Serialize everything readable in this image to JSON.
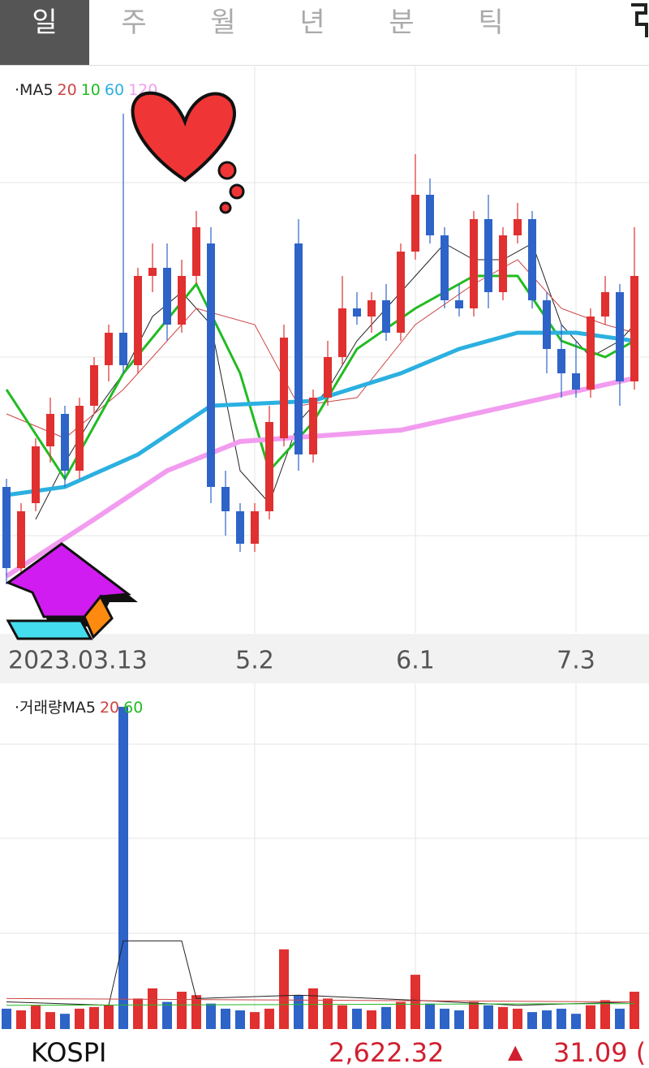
{
  "header": {
    "tabs": [
      "일",
      "주",
      "월",
      "년",
      "분",
      "틱"
    ]
  },
  "chart_data": [
    {
      "type": "candlestick",
      "legend_prefix": "·",
      "up_color": "#e03030",
      "down_color": "#2e63c8",
      "categories": [
        "2023.03.13",
        null,
        null,
        null,
        null,
        null,
        null,
        null,
        null,
        null,
        null,
        null,
        null,
        null,
        null,
        null,
        null,
        "5.2",
        null,
        null,
        null,
        null,
        null,
        null,
        null,
        null,
        null,
        null,
        "6.1",
        null,
        null,
        null,
        null,
        null,
        null,
        null,
        null,
        null,
        null,
        "7.3",
        null,
        null,
        null,
        null
      ],
      "ylim": [
        2400,
        2747.5
      ],
      "open": [
        2490,
        2440,
        2480,
        2515,
        2535,
        2500,
        2540,
        2565,
        2585,
        2565,
        2620,
        2625,
        2590,
        2620,
        2640,
        2490,
        2475,
        2455,
        2475,
        2520,
        2640,
        2510,
        2545,
        2570,
        2600,
        2595,
        2605,
        2585,
        2635,
        2670,
        2645,
        2605,
        2600,
        2655,
        2610,
        2645,
        2655,
        2605,
        2575,
        2560,
        2550,
        2595,
        2610,
        2555
      ],
      "high": [
        2495,
        2480,
        2520,
        2545,
        2540,
        2545,
        2570,
        2590,
        2720,
        2625,
        2640,
        2640,
        2630,
        2660,
        2650,
        2500,
        2480,
        2480,
        2540,
        2590,
        2655,
        2550,
        2580,
        2620,
        2610,
        2610,
        2615,
        2640,
        2695,
        2680,
        2650,
        2615,
        2660,
        2670,
        2650,
        2665,
        2660,
        2610,
        2590,
        2580,
        2600,
        2620,
        2615,
        2650
      ],
      "low": [
        2430,
        2435,
        2475,
        2505,
        2490,
        2495,
        2535,
        2555,
        2560,
        2560,
        2610,
        2580,
        2585,
        2615,
        2480,
        2460,
        2450,
        2450,
        2470,
        2515,
        2500,
        2505,
        2540,
        2565,
        2590,
        2585,
        2580,
        2580,
        2630,
        2640,
        2600,
        2595,
        2595,
        2600,
        2605,
        2640,
        2600,
        2560,
        2545,
        2545,
        2545,
        2590,
        2540,
        2550
      ],
      "close": [
        2440,
        2475,
        2515,
        2535,
        2500,
        2540,
        2565,
        2585,
        2565,
        2620,
        2625,
        2590,
        2620,
        2650,
        2490,
        2475,
        2455,
        2475,
        2530,
        2582,
        2510,
        2545,
        2570,
        2600,
        2595,
        2605,
        2585,
        2635,
        2670,
        2645,
        2605,
        2600,
        2655,
        2610,
        2645,
        2655,
        2605,
        2575,
        2560,
        2550,
        2595,
        2610,
        2555,
        2620
      ],
      "series": [
        {
          "name": "MA5",
          "color": "#222222",
          "width": 1,
          "x": [
            2,
            4,
            6,
            8,
            10,
            12,
            14,
            16,
            18,
            20,
            22,
            24,
            26,
            28,
            30,
            32,
            34,
            36,
            38,
            40,
            42,
            43
          ],
          "values": [
            2470,
            2505,
            2535,
            2560,
            2595,
            2610,
            2590,
            2500,
            2480,
            2530,
            2550,
            2580,
            2600,
            2620,
            2640,
            2630,
            2630,
            2640,
            2590,
            2570,
            2580,
            2590
          ]
        },
        {
          "name": "20",
          "color": "#cc4444",
          "width": 1,
          "x": [
            0,
            4,
            8,
            13,
            17,
            20,
            24,
            28,
            32,
            35,
            38,
            41,
            43
          ],
          "values": [
            2535,
            2520,
            2550,
            2600,
            2590,
            2540,
            2545,
            2590,
            2615,
            2630,
            2600,
            2590,
            2585
          ]
        },
        {
          "name": "10",
          "color": "#22bb22",
          "width": 3,
          "x": [
            0,
            4,
            8,
            13,
            16,
            18,
            21,
            24,
            28,
            32,
            35,
            38,
            41,
            43
          ],
          "values": [
            2550,
            2495,
            2560,
            2615,
            2560,
            2500,
            2530,
            2575,
            2600,
            2620,
            2620,
            2580,
            2570,
            2580
          ]
        },
        {
          "name": "60",
          "color": "#2bb0e0",
          "width": 5,
          "x": [
            0,
            4,
            9,
            14,
            21,
            27,
            31,
            35,
            39,
            43
          ],
          "values": [
            2485,
            2490,
            2510,
            2540,
            2543,
            2560,
            2575,
            2585,
            2585,
            2580
          ]
        },
        {
          "name": "120",
          "color": "#f29cf0",
          "width": 6,
          "x": [
            0,
            6,
            11,
            16,
            27,
            37,
            43
          ],
          "values": [
            2435,
            2470,
            2500,
            2518,
            2525,
            2545,
            2557
          ]
        }
      ]
    },
    {
      "type": "bar",
      "legend_prefix": "·거래량",
      "up_color": "#e03030",
      "down_color": "#2e63c8",
      "ylim": [
        0,
        1000
      ],
      "values": [
        60,
        55,
        70,
        50,
        45,
        60,
        65,
        70,
        950,
        90,
        120,
        80,
        110,
        100,
        75,
        60,
        55,
        50,
        60,
        235,
        100,
        120,
        90,
        70,
        60,
        55,
        65,
        80,
        160,
        75,
        60,
        55,
        80,
        70,
        65,
        60,
        50,
        55,
        60,
        45,
        70,
        85,
        60,
        110
      ],
      "series": [
        {
          "name": "MA5",
          "color": "#222222",
          "x": [
            0,
            7,
            8,
            12,
            13,
            20,
            28,
            35,
            43
          ],
          "values": [
            80,
            70,
            260,
            260,
            90,
            100,
            85,
            70,
            80
          ]
        },
        {
          "name": "20",
          "color": "#cc4444",
          "x": [
            0,
            43
          ],
          "values": [
            90,
            80
          ]
        },
        {
          "name": "60",
          "color": "#22bb22",
          "x": [
            0,
            43
          ],
          "values": [
            70,
            75
          ]
        }
      ]
    }
  ],
  "footer": {
    "name": "KOSPI",
    "price": "2,622.32",
    "arrow": "▲",
    "change": "31.09 ("
  }
}
